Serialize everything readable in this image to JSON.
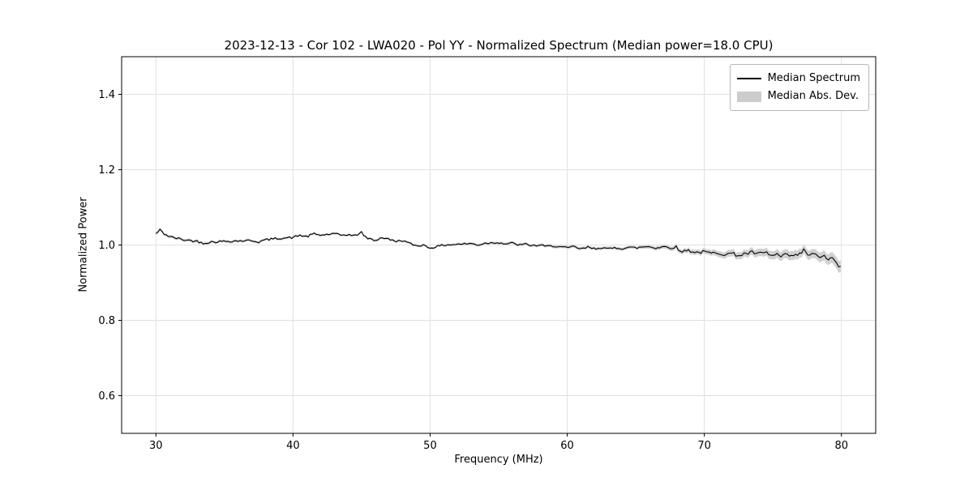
{
  "chart_data": {
    "type": "line",
    "title": "2023-12-13 - Cor 102 - LWA020 - Pol YY - Normalized Spectrum (Median power=18.0 CPU)",
    "xlabel": "Frequency (MHz)",
    "ylabel": "Normalized Power",
    "xlim": [
      27.5,
      82.5
    ],
    "ylim": [
      0.5,
      1.5
    ],
    "xticks": [
      30,
      40,
      50,
      60,
      70,
      80
    ],
    "yticks": [
      0.6,
      0.8,
      1.0,
      1.2,
      1.4
    ],
    "grid": true,
    "grid_color": "#e0e0e0",
    "legend_position": "upper right",
    "series": [
      {
        "name": "Median Spectrum",
        "type": "line",
        "color": "#000000",
        "x": [
          30,
          30.3,
          30.6,
          31,
          32,
          33,
          33.5,
          34,
          35,
          36,
          37,
          37.5,
          38,
          39,
          40,
          40.5,
          41,
          41.5,
          42,
          43,
          43.5,
          44,
          44.5,
          45,
          45.3,
          46,
          46.5,
          47,
          47.5,
          48,
          48.5,
          49,
          49.5,
          50,
          50.5,
          51,
          52,
          53,
          53.5,
          54,
          55,
          55.5,
          56,
          56.5,
          57,
          57.5,
          58,
          58.5,
          59,
          60,
          60.5,
          61,
          61.5,
          62,
          62.5,
          63,
          63.5,
          64,
          64.5,
          65,
          65.5,
          66,
          66.5,
          67,
          67.5,
          68,
          68.3,
          68.6,
          69,
          69.5,
          70,
          70.5,
          71,
          71.5,
          72,
          72.5,
          73,
          73.5,
          74,
          74.5,
          75,
          75.3,
          75.6,
          76,
          76.5,
          77,
          77.3,
          77.6,
          78,
          78.3,
          78.6,
          79,
          79.3,
          79.6,
          80
        ],
        "y": [
          1.03,
          1.04,
          1.03,
          1.022,
          1.014,
          1.01,
          1.005,
          1.008,
          1.01,
          1.011,
          1.012,
          1.008,
          1.014,
          1.018,
          1.02,
          1.026,
          1.022,
          1.03,
          1.026,
          1.03,
          1.026,
          1.028,
          1.024,
          1.034,
          1.02,
          1.012,
          1.02,
          1.015,
          1.01,
          1.012,
          1.004,
          0.998,
          1.0,
          0.992,
          0.996,
          1.0,
          1.002,
          1.004,
          1.0,
          1.005,
          1.007,
          1.003,
          1.005,
          1.0,
          1.002,
          0.998,
          1.0,
          0.996,
          0.998,
          0.992,
          0.996,
          0.989,
          0.994,
          0.99,
          0.994,
          0.989,
          0.993,
          0.991,
          0.994,
          0.992,
          0.995,
          0.996,
          0.992,
          0.996,
          0.993,
          0.995,
          0.978,
          0.988,
          0.984,
          0.98,
          0.982,
          0.978,
          0.98,
          0.975,
          0.978,
          0.972,
          0.977,
          0.98,
          0.976,
          0.98,
          0.97,
          0.976,
          0.968,
          0.974,
          0.97,
          0.976,
          0.988,
          0.972,
          0.976,
          0.968,
          0.972,
          0.962,
          0.966,
          0.952,
          0.938
        ]
      },
      {
        "name": "Median Abs. Dev.",
        "type": "band",
        "color": "#cccccc",
        "x": [
          30,
          40,
          50,
          60,
          65,
          68,
          70,
          72,
          74,
          76,
          78,
          80
        ],
        "halfwidth": [
          0.004,
          0.003,
          0.003,
          0.004,
          0.004,
          0.006,
          0.007,
          0.009,
          0.01,
          0.012,
          0.012,
          0.016
        ]
      }
    ],
    "noise": {
      "seed": 42,
      "step_mhz": 0.15,
      "amp_x": [
        30,
        50,
        65,
        70,
        75,
        80
      ],
      "amp_y": [
        0.003,
        0.0025,
        0.003,
        0.004,
        0.005,
        0.005
      ]
    }
  }
}
